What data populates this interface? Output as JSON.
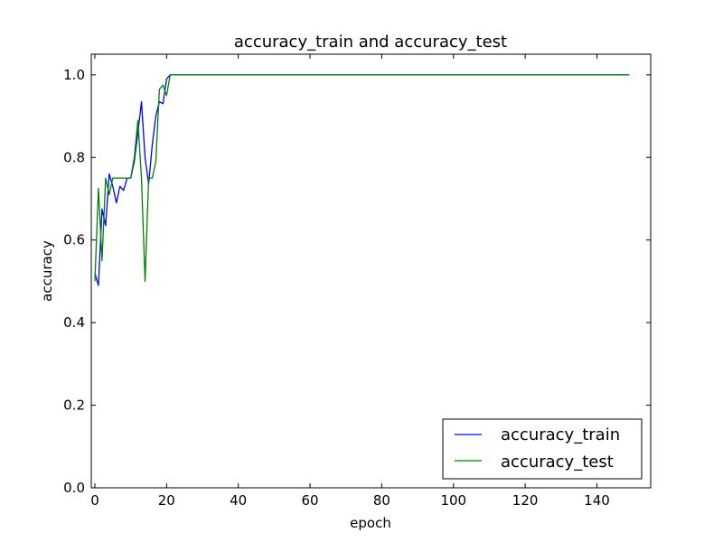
{
  "chart_data": {
    "type": "line",
    "title": "accuracy_train and accuracy_test",
    "xlabel": "epoch",
    "ylabel": "accuracy",
    "xlim": [
      -1,
      155
    ],
    "ylim": [
      0.0,
      1.05
    ],
    "xticks": [
      0,
      20,
      40,
      60,
      80,
      100,
      120,
      140
    ],
    "yticks": [
      0.0,
      0.2,
      0.4,
      0.6,
      0.8,
      1.0
    ],
    "xtick_labels": [
      "0",
      "20",
      "40",
      "60",
      "80",
      "100",
      "120",
      "140"
    ],
    "ytick_labels": [
      "0.0",
      "0.2",
      "0.4",
      "0.6",
      "0.8",
      "1.0"
    ],
    "grid": false,
    "legend_position": "lower-right",
    "series": [
      {
        "name": "accuracy_train",
        "color": "#0000ff",
        "x": [
          0,
          1,
          2,
          3,
          4,
          5,
          6,
          7,
          8,
          9,
          10,
          11,
          12,
          13,
          14,
          15,
          16,
          17,
          18,
          19,
          20,
          21,
          22,
          23,
          149
        ],
        "y": [
          0.52,
          0.49,
          0.675,
          0.635,
          0.76,
          0.73,
          0.69,
          0.73,
          0.72,
          0.75,
          0.75,
          0.79,
          0.86,
          0.935,
          0.8,
          0.735,
          0.83,
          0.9,
          0.935,
          0.93,
          0.99,
          1.0,
          1.0,
          1.0,
          1.0
        ]
      },
      {
        "name": "accuracy_test",
        "color": "#008000",
        "x": [
          0,
          1,
          2,
          3,
          4,
          5,
          6,
          7,
          8,
          9,
          10,
          11,
          12,
          13,
          14,
          15,
          16,
          17,
          18,
          19,
          20,
          21,
          22,
          23,
          149
        ],
        "y": [
          0.5,
          0.725,
          0.55,
          0.75,
          0.71,
          0.75,
          0.75,
          0.75,
          0.75,
          0.75,
          0.75,
          0.8,
          0.89,
          0.75,
          0.5,
          0.75,
          0.75,
          0.79,
          0.965,
          0.975,
          0.95,
          1.0,
          1.0,
          1.0,
          1.0
        ]
      }
    ]
  }
}
